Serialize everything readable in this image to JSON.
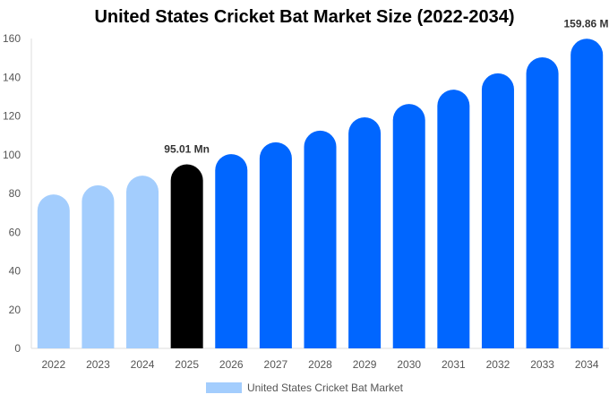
{
  "chart_data": {
    "type": "bar",
    "title": "United States Cricket Bat Market Size (2022-2034)",
    "categories": [
      "2022",
      "2023",
      "2024",
      "2025",
      "2026",
      "2027",
      "2028",
      "2029",
      "2030",
      "2031",
      "2032",
      "2033",
      "2034"
    ],
    "series": [
      {
        "name": "United States Cricket Bat Market",
        "values": [
          79.5,
          84.2,
          89.2,
          95.01,
          100.3,
          106.4,
          112.4,
          119.3,
          126.2,
          133.6,
          142.0,
          150.3,
          159.86
        ]
      }
    ],
    "data_labels": {
      "3": "95.01 Mn",
      "12": "159.86 Mn"
    },
    "yticks": [
      0,
      20,
      40,
      60,
      80,
      100,
      120,
      140,
      160
    ],
    "ylim": [
      0,
      160
    ],
    "xlabel": "",
    "ylabel": "",
    "grid": false,
    "legend_position": "bottom",
    "colors": {
      "historical": "#a3cdfd",
      "current": "#000000",
      "forecast": "#0066ff"
    }
  }
}
